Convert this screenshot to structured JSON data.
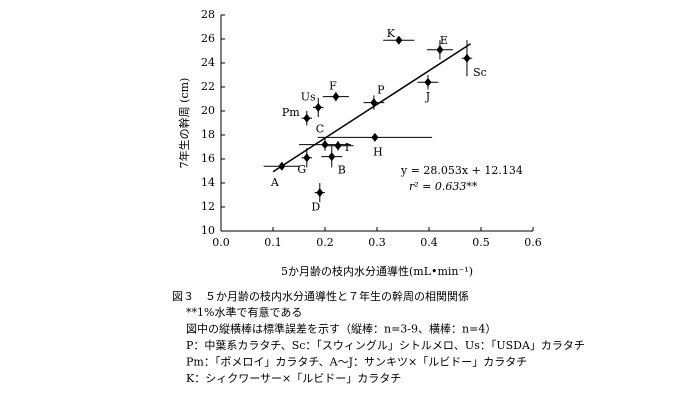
{
  "chart_data": {
    "type": "scatter",
    "x_label": "5か月齢の枝内水分通導性(mL•min⁻¹)",
    "y_label": "7年生の幹周 (cm)",
    "labels": [
      "A",
      "G",
      "D",
      "Pm",
      "Us",
      "F",
      "C",
      "B",
      "I",
      "H",
      "P",
      "J",
      "K",
      "E",
      "Sc"
    ],
    "x": [
      0.117,
      0.165,
      0.19,
      0.165,
      0.187,
      0.221,
      0.2,
      0.213,
      0.225,
      0.296,
      0.294,
      0.398,
      0.342,
      0.421,
      0.473
    ],
    "values": [
      15.4,
      16.1,
      13.2,
      19.4,
      20.3,
      21.2,
      17.2,
      16.2,
      17.1,
      17.8,
      20.7,
      22.4,
      25.9,
      25.1,
      24.4
    ],
    "xerr": [
      0.035,
      0.01,
      0.01,
      0.01,
      0.01,
      0.025,
      0.05,
      0.02,
      0.03,
      0.11,
      0.02,
      0.02,
      0.03,
      0.025,
      0.01
    ],
    "yerr": [
      0.3,
      0.8,
      0.8,
      0.6,
      0.8,
      0.4,
      0.5,
      0.9,
      0.4,
      0,
      0.6,
      0.6,
      0,
      0.8,
      1.5
    ],
    "color": "#000000",
    "fit": {
      "slope": 28.053,
      "intercept": 12.134,
      "x_from": 0.1,
      "x_to": 0.48,
      "equation": "y = 28.053x + 12.134",
      "r2_label": "r² = 0.633**"
    },
    "xlim": [
      0,
      0.6
    ],
    "xticks": [
      {
        "value": 0,
        "label": "0.0"
      },
      0.1,
      0.2,
      0.3,
      0.4,
      0.5,
      0.6
    ],
    "ylim": [
      10,
      28
    ],
    "yticks": [
      10,
      12,
      14,
      16,
      18,
      20,
      22,
      24,
      26,
      28
    ],
    "caption": [
      "図３　５か月齢の枝内水分通導性と７年生の幹周の相関関係",
      "**1%水準で有意である",
      "図中の縦横棒は標準誤差を示す（縦棒：n=3-9、横棒：n=4）",
      "P：中葉系カラタチ、Sc：「スウィングル」シトルメロ、Us：「USDA」カラタチ",
      "Pm：「ポメロイ」カラタチ、A～J：サンキツ×「ルビドー」カラタチ",
      "K：シィクワーサー×「ルビドー」カラタチ"
    ]
  }
}
